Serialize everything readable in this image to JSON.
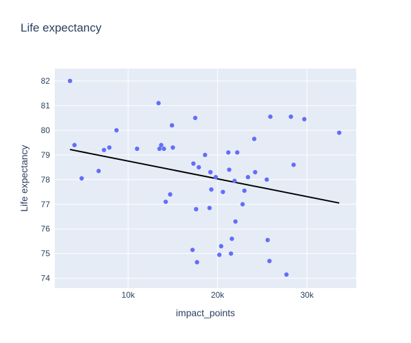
{
  "chart_data": {
    "type": "scatter",
    "title": "Life expectancy",
    "xlabel": "impact_points",
    "ylabel": "Life expectancy",
    "xlim": [
      1800,
      35500
    ],
    "ylim": [
      73.6,
      82.5
    ],
    "xticks": [
      10000,
      20000,
      30000
    ],
    "xtick_labels": [
      "10k",
      "20k",
      "30k"
    ],
    "yticks": [
      74,
      75,
      76,
      77,
      78,
      79,
      80,
      81,
      82
    ],
    "yticklabels": [
      "74",
      "75",
      "76",
      "77",
      "78",
      "79",
      "80",
      "81",
      "82"
    ],
    "grid": true,
    "legend": "none",
    "colors": {
      "plot_bg": "#e5ecf6",
      "point": "#636efa",
      "trendline": "#000000",
      "grid": "#ffffff",
      "text": "#2a3f5f"
    },
    "series": [
      {
        "kind": "points",
        "x": [
          3500,
          4000,
          4800,
          6700,
          7300,
          7900,
          8700,
          11000,
          13400,
          13500,
          13700,
          14000,
          14200,
          14700,
          14900,
          15000,
          17200,
          17300,
          17500,
          17600,
          17700,
          17900,
          18600,
          19100,
          19200,
          19300,
          19800,
          20200,
          20400,
          20600,
          21200,
          21300,
          21500,
          21600,
          21900,
          22000,
          22200,
          22800,
          23000,
          23400,
          24100,
          24200,
          25500,
          25600,
          25800,
          25900,
          27700,
          28200,
          28500,
          29700,
          33600
        ],
        "y": [
          82.0,
          79.4,
          78.05,
          78.35,
          79.2,
          79.3,
          80.0,
          79.25,
          81.1,
          79.25,
          79.4,
          79.25,
          77.1,
          77.4,
          80.2,
          79.3,
          75.15,
          78.65,
          80.5,
          76.8,
          74.65,
          78.5,
          79.0,
          76.85,
          78.3,
          77.6,
          78.1,
          74.95,
          75.3,
          77.5,
          79.1,
          78.4,
          75.0,
          75.6,
          77.95,
          76.3,
          79.1,
          77.0,
          77.55,
          78.1,
          79.65,
          78.3,
          78.0,
          75.55,
          74.7,
          80.55,
          74.15,
          80.55,
          78.6,
          80.45,
          79.9
        ]
      },
      {
        "kind": "trendline",
        "x": [
          3500,
          33600
        ],
        "y": [
          79.22,
          77.05
        ]
      }
    ]
  }
}
